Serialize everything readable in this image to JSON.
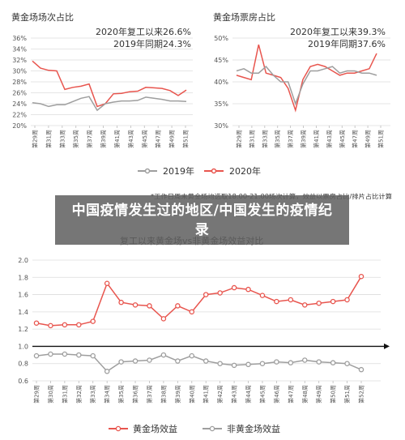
{
  "colors": {
    "y2019": "#9e9e9e",
    "y2020": "#e8554e",
    "efficiency": "#e8554e",
    "non_efficiency": "#9e9e9e",
    "axis": "#cccccc",
    "text": "#333333",
    "baseline": "#111111"
  },
  "legend_top": {
    "label_2019": "2019年",
    "label_2020": "2020年"
  },
  "legend_bottom": {
    "label_a": "黄金场效益",
    "label_b": "非黄金场效益"
  },
  "note": "*工作日周末黄金场均选取18:00-21:00场次计算，效益以票房占比/排片占比计算",
  "overlay_title": "中国疫情发生过的地区/中国发生的疫情纪录",
  "chart_data": [
    {
      "type": "line",
      "title": "黄金场场次占比",
      "annotations": [
        "2020年复工以来26.6%",
        "2019年同期24.3%"
      ],
      "ylim": [
        20,
        36
      ],
      "yticks": [
        20,
        22,
        24,
        26,
        28,
        30,
        32,
        34,
        36
      ],
      "ytick_suffix": "%",
      "xtick_labels": [
        "第29周",
        "第31周",
        "第33周",
        "第35周",
        "第37周",
        "第39周",
        "第41周",
        "第43周",
        "第45周",
        "第47周",
        "第49周",
        "第51周"
      ],
      "series": [
        {
          "name": "2020年",
          "values": [
            31.8,
            30.5,
            30.1,
            30.0,
            26.6,
            27.0,
            27.2,
            27.6,
            23.5,
            24.0,
            25.8,
            25.9,
            26.2,
            26.3,
            27.0,
            26.9,
            26.8,
            26.4,
            25.5,
            26.5
          ]
        },
        {
          "name": "2019年",
          "values": [
            24.2,
            24.0,
            23.5,
            23.8,
            23.8,
            24.4,
            25.0,
            25.3,
            22.8,
            24.0,
            24.3,
            24.5,
            24.5,
            24.6,
            25.2,
            25.0,
            24.8,
            24.5,
            24.5,
            24.4
          ]
        }
      ]
    },
    {
      "type": "line",
      "title": "黄金场票房占比",
      "annotations": [
        "2020年复工以来39.3%",
        "2019年同期37.6%"
      ],
      "ylim": [
        30,
        50
      ],
      "yticks": [
        30,
        35,
        40,
        45,
        50
      ],
      "ytick_suffix": "%",
      "xtick_labels": [
        "第29周",
        "第31周",
        "第33周",
        "第35周",
        "第37周",
        "第39周",
        "第41周",
        "第43周",
        "第45周",
        "第47周",
        "第49周",
        "第51周"
      ],
      "series": [
        {
          "name": "2020年",
          "values": [
            41.5,
            41.0,
            40.5,
            48.5,
            42.0,
            41.5,
            41.0,
            38.5,
            33.5,
            40.5,
            43.5,
            44.0,
            43.5,
            42.5,
            41.5,
            42.0,
            42.0,
            42.5,
            43.0,
            46.5
          ]
        },
        {
          "name": "2019年",
          "values": [
            42.5,
            43.0,
            42.0,
            42.0,
            43.5,
            41.5,
            40.0,
            40.0,
            35.0,
            39.5,
            42.5,
            42.5,
            43.0,
            43.5,
            42.0,
            42.5,
            42.5,
            42.0,
            42.0,
            41.5
          ]
        }
      ]
    },
    {
      "type": "line",
      "title": "复工以来黄金场vs非黄金场效益对比",
      "ylim": [
        0.6,
        2.0
      ],
      "yticks": [
        0.6,
        0.8,
        1.0,
        1.2,
        1.4,
        1.6,
        1.8,
        2.0
      ],
      "reference_line": 1.0,
      "xtick_labels": [
        "第29周",
        "第30周",
        "第31周",
        "第32周",
        "第33周",
        "第34周",
        "第35周",
        "第36周",
        "第37周",
        "第38周",
        "第39周",
        "第40周",
        "第41周",
        "第42周",
        "第43周",
        "第44周",
        "第45周",
        "第46周",
        "第47周",
        "第48周",
        "第49周",
        "第50周",
        "第51周",
        "第52周"
      ],
      "series": [
        {
          "name": "黄金场效益",
          "values": [
            1.27,
            1.24,
            1.25,
            1.25,
            1.29,
            1.73,
            1.51,
            1.48,
            1.47,
            1.32,
            1.47,
            1.4,
            1.6,
            1.62,
            1.68,
            1.66,
            1.59,
            1.52,
            1.54,
            1.48,
            1.5,
            1.52,
            1.54,
            1.81
          ]
        },
        {
          "name": "非黄金场效益",
          "values": [
            0.89,
            0.91,
            0.91,
            0.9,
            0.89,
            0.71,
            0.82,
            0.83,
            0.84,
            0.9,
            0.83,
            0.89,
            0.83,
            0.8,
            0.78,
            0.79,
            0.8,
            0.82,
            0.81,
            0.84,
            0.82,
            0.81,
            0.8,
            0.73
          ]
        }
      ]
    }
  ]
}
